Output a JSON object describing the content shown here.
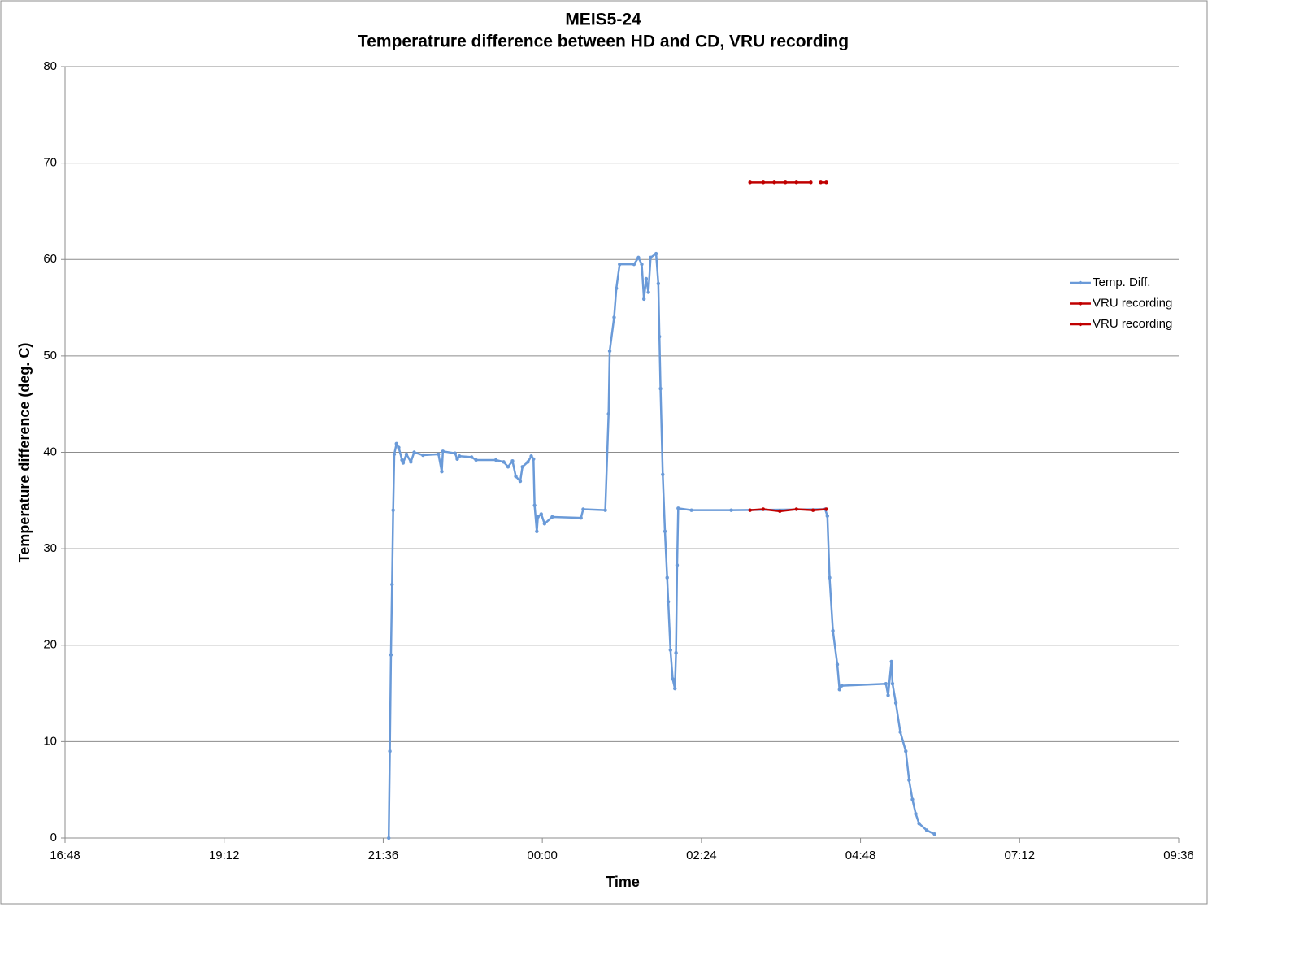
{
  "chart_data": {
    "type": "line",
    "title": "MEIS5-24",
    "subtitle": "Temperatrure difference between HD and CD, VRU recording",
    "x_label": "Time",
    "y_label": "Temperature difference (deg. C)",
    "xlim": [
      "16:48",
      "09:36"
    ],
    "xticks": [
      "16:48",
      "19:12",
      "21:36",
      "00:00",
      "02:24",
      "04:48",
      "07:12",
      "09:36"
    ],
    "ylim": [
      0,
      80
    ],
    "yticks": [
      0,
      10,
      20,
      30,
      40,
      50,
      60,
      70,
      80
    ],
    "grid": true,
    "legend": "right",
    "series": [
      {
        "name": "Temp. Diff.",
        "color": "#6a9ad8",
        "x": [
          "21:41",
          "21:42",
          "21:43",
          "21:44",
          "21:45",
          "21:46",
          "21:48",
          "21:50",
          "21:53",
          "21:54",
          "21:57",
          "22:01",
          "22:04",
          "22:12",
          "22:26",
          "22:29",
          "22:30",
          "22:41",
          "22:43",
          "22:45",
          "22:56",
          "23:00",
          "23:18",
          "23:25",
          "23:29",
          "23:33",
          "23:36",
          "23:40",
          "23:42",
          "23:47",
          "23:50",
          "23:52",
          "23:53",
          "23:55",
          "23:56",
          "23:59",
          "00:02",
          "00:09",
          "00:35",
          "00:37",
          "00:57",
          "01:00",
          "01:01",
          "01:05",
          "01:07",
          "01:10",
          "01:23",
          "01:27",
          "01:30",
          "01:32",
          "01:34",
          "01:36",
          "01:38",
          "01:43",
          "01:45",
          "01:46",
          "01:47",
          "01:49",
          "01:51",
          "01:53",
          "01:54",
          "01:56",
          "01:58",
          "02:00",
          "02:01",
          "02:02",
          "02:03",
          "02:15",
          "02:51",
          "04:16",
          "04:18",
          "04:20",
          "04:23",
          "04:27",
          "04:29",
          "04:31",
          "05:11",
          "05:13",
          "05:16",
          "05:17",
          "05:20",
          "05:24",
          "05:29",
          "05:32",
          "05:35",
          "05:38",
          "05:41",
          "05:48",
          "05:55"
        ],
        "values": [
          0,
          9,
          19,
          26.3,
          34,
          39.8,
          40.9,
          40.5,
          39.2,
          38.9,
          39.8,
          39,
          40,
          39.7,
          39.8,
          38,
          40.1,
          39.9,
          39.3,
          39.6,
          39.5,
          39.2,
          39.2,
          39,
          38.5,
          39.1,
          37.5,
          37,
          38.5,
          39,
          39.6,
          39.3,
          34.5,
          31.8,
          33.3,
          33.6,
          32.6,
          33.3,
          33.2,
          34.1,
          34,
          44,
          50.5,
          54,
          57,
          59.5,
          59.5,
          60.2,
          59.5,
          55.9,
          58,
          56.6,
          60.2,
          60.6,
          57.5,
          52,
          46.6,
          37.7,
          31.8,
          27,
          24.5,
          19.5,
          16.5,
          15.5,
          19.2,
          28.3,
          34.2,
          34,
          34,
          34.1,
          33.4,
          27,
          21.5,
          18,
          15.4,
          15.8,
          16,
          14.8,
          18.3,
          16,
          14,
          11,
          9,
          6,
          4,
          2.5,
          1.5,
          0.8,
          0.4
        ]
      },
      {
        "name": "VRU recording",
        "color": "#c00000",
        "x": [
          "03:08",
          "03:20",
          "03:35",
          "03:50",
          "04:05",
          "04:17"
        ],
        "values": [
          34,
          34.1,
          33.9,
          34.1,
          34,
          34.1
        ]
      },
      {
        "name": "VRU recording",
        "color": "#c00000",
        "x": [
          "03:08",
          "03:20",
          "03:30",
          "03:40",
          "03:50",
          "04:03",
          "04:07",
          "04:12",
          "04:17"
        ],
        "values": [
          68,
          68,
          68,
          68,
          68,
          68,
          null,
          68,
          68
        ]
      }
    ]
  }
}
